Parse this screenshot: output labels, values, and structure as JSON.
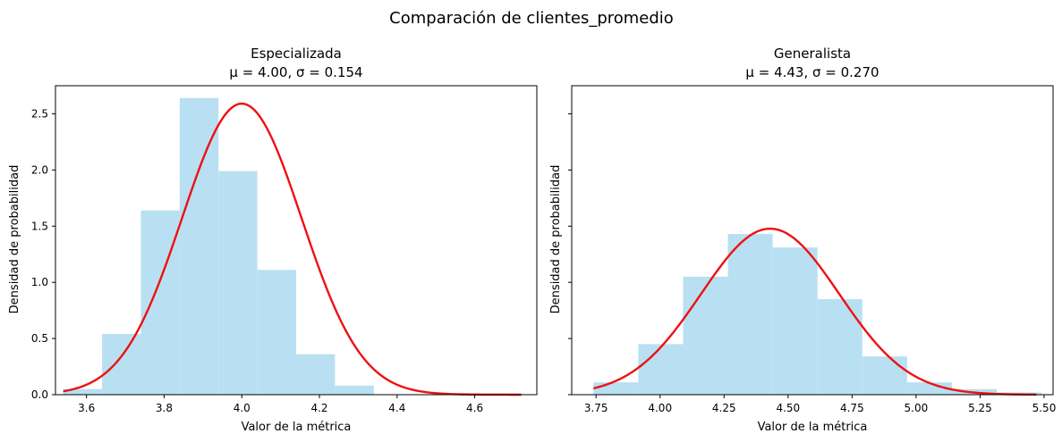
{
  "figure_title": "Comparación de clientes_promedio",
  "chart_data": [
    {
      "type": "bar",
      "title_line1": "Especializada",
      "title_line2": "μ = 4.00, σ = 0.154",
      "xlabel": "Valor de la métrica",
      "ylabel": "Densidad de probabilidad",
      "xlim": [
        3.52,
        4.76
      ],
      "ylim": [
        0,
        2.75
      ],
      "xticks": [
        3.6,
        3.8,
        4.0,
        4.2,
        4.4,
        4.6
      ],
      "xtick_labels": [
        "3.6",
        "3.8",
        "4.0",
        "4.2",
        "4.4",
        "4.6"
      ],
      "yticks": [
        0.0,
        0.5,
        1.0,
        1.5,
        2.0,
        2.5
      ],
      "ytick_labels": [
        "0.0",
        "0.5",
        "1.0",
        "1.5",
        "2.0",
        "2.5"
      ],
      "bin_edges": [
        3.54,
        3.64,
        3.74,
        3.84,
        3.94,
        4.04,
        4.14,
        4.24,
        4.34,
        4.44
      ],
      "bin_values": [
        0.05,
        0.54,
        1.64,
        2.64,
        1.99,
        1.11,
        0.36,
        0.08,
        0.0
      ],
      "bar_color": "#b8e0f2",
      "curve": {
        "mu": 4.0,
        "sigma": 0.154,
        "x_range": [
          3.54,
          4.72
        ],
        "color": "#ee1111"
      }
    },
    {
      "type": "bar",
      "title_line1": "Generalista",
      "title_line2": "μ = 4.43, σ = 0.270",
      "xlabel": "Valor de la métrica",
      "ylabel": "Densidad de probabilidad",
      "xlim": [
        3.655,
        5.535
      ],
      "ylim": [
        0,
        2.75
      ],
      "xticks": [
        3.75,
        4.0,
        4.25,
        4.5,
        4.75,
        5.0,
        5.25,
        5.5
      ],
      "xtick_labels": [
        "3.75",
        "4.00",
        "4.25",
        "4.50",
        "4.75",
        "5.00",
        "5.25",
        "5.50"
      ],
      "bin_edges": [
        3.74,
        3.915,
        4.09,
        4.265,
        4.44,
        4.615,
        4.79,
        4.965,
        5.14,
        5.315,
        5.49
      ],
      "bin_values": [
        0.11,
        0.45,
        1.05,
        1.43,
        1.31,
        0.85,
        0.34,
        0.11,
        0.05,
        0.02
      ],
      "bar_color": "#b8e0f2",
      "curve": {
        "mu": 4.43,
        "sigma": 0.27,
        "x_range": [
          3.74,
          5.47
        ],
        "color": "#ee1111"
      }
    }
  ]
}
